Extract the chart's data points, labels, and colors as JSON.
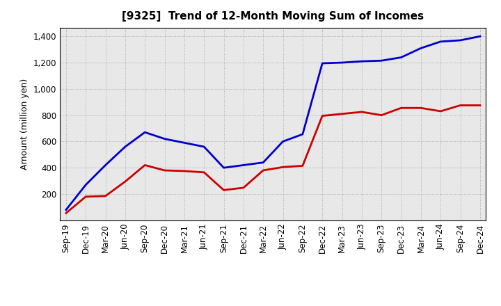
{
  "title": "[9325]  Trend of 12-Month Moving Sum of Incomes",
  "ylabel": "Amount (million yen)",
  "x_labels": [
    "Sep-19",
    "Dec-19",
    "Mar-20",
    "Jun-20",
    "Sep-20",
    "Dec-20",
    "Mar-21",
    "Jun-21",
    "Sep-21",
    "Dec-21",
    "Mar-22",
    "Jun-22",
    "Sep-22",
    "Dec-22",
    "Mar-23",
    "Jun-23",
    "Sep-23",
    "Dec-23",
    "Mar-24",
    "Jun-24",
    "Sep-24",
    "Dec-24"
  ],
  "ordinary_income": [
    80,
    270,
    420,
    560,
    670,
    620,
    590,
    560,
    400,
    420,
    440,
    600,
    655,
    1195,
    1200,
    1210,
    1215,
    1240,
    1310,
    1360,
    1370,
    1400
  ],
  "net_income": [
    55,
    180,
    185,
    295,
    420,
    380,
    375,
    365,
    230,
    248,
    380,
    405,
    415,
    795,
    810,
    825,
    800,
    855,
    855,
    830,
    875,
    875
  ],
  "ordinary_color": "#0000cc",
  "net_color": "#cc0000",
  "ylim_min": 0,
  "ylim_max": 1467,
  "yticks": [
    200,
    400,
    600,
    800,
    1000,
    1200,
    1400
  ],
  "ytick_labels": [
    "200",
    "400",
    "600",
    "800",
    "1,000",
    "1,200",
    "1,400"
  ],
  "bg_color": "#ffffff",
  "plot_bg_color": "#e8e8e8",
  "grid_color": "#999999",
  "title_fontsize": 11,
  "axis_fontsize": 9,
  "tick_fontsize": 8.5,
  "linewidth": 2.0
}
